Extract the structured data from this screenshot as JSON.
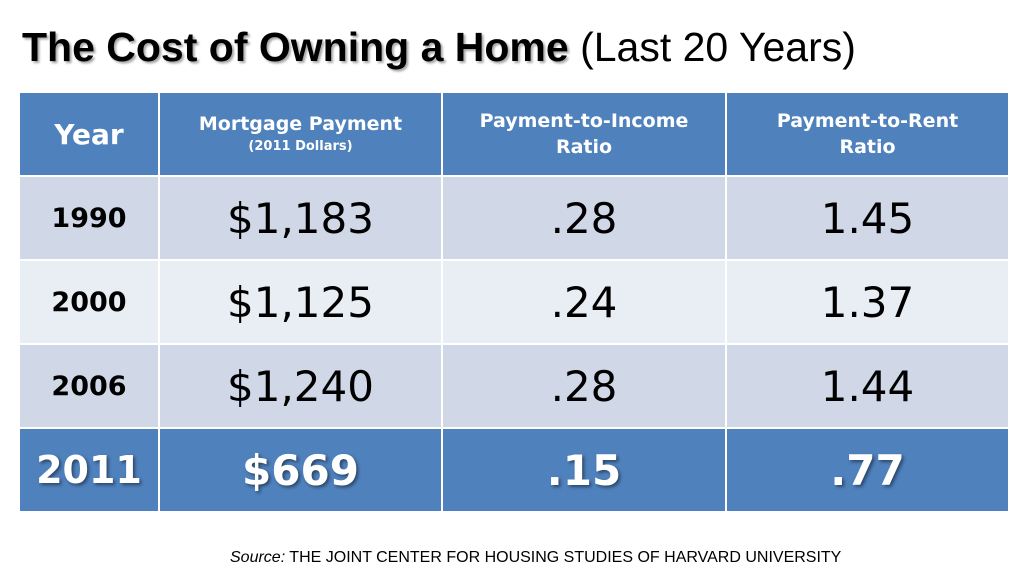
{
  "title": {
    "bold": "The Cost of Owning a Home",
    "rest": "(Last 20 Years)"
  },
  "source": {
    "label": "Source:",
    "text": "THE JOINT CENTER FOR HOUSING STUDIES OF HARVARD UNIVERSITY"
  },
  "colors": {
    "header": "#4f81bd",
    "row_dark": "#d0d8e8",
    "row_light": "#e9edf4"
  },
  "chart_data": {
    "type": "table",
    "title": "The Cost of Owning a Home (Last 20 Years)",
    "columns": [
      {
        "main": "Year",
        "sub": ""
      },
      {
        "main": "Mortgage Payment",
        "sub": "(2011 Dollars)"
      },
      {
        "main": "Payment-to-Income",
        "sub": "Ratio"
      },
      {
        "main": "Payment-to-Rent",
        "sub": "Ratio"
      }
    ],
    "rows": [
      {
        "year": "1990",
        "mortgage": "$1,183",
        "income_ratio": ".28",
        "rent_ratio": "1.45"
      },
      {
        "year": "2000",
        "mortgage": "$1,125",
        "income_ratio": ".24",
        "rent_ratio": "1.37"
      },
      {
        "year": "2006",
        "mortgage": "$1,240",
        "income_ratio": ".28",
        "rent_ratio": "1.44"
      },
      {
        "year": "2011",
        "mortgage": "$669",
        "income_ratio": ".15",
        "rent_ratio": ".77"
      }
    ],
    "highlighted_row": "2011"
  }
}
